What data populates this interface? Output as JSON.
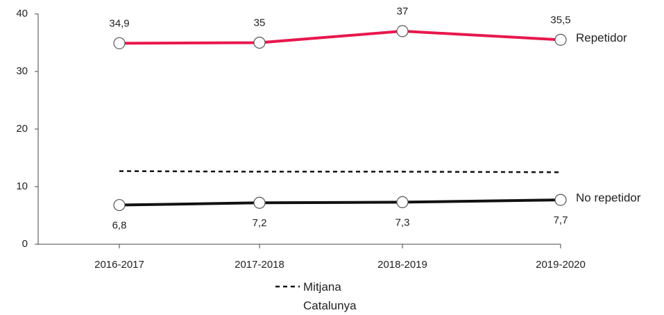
{
  "chart_data": {
    "type": "line",
    "categories": [
      "2016-2017",
      "2017-2018",
      "2018-2019",
      "2019-2020"
    ],
    "series": [
      {
        "name": "Repetidor",
        "color": "#e8174d",
        "values": [
          34.9,
          35,
          37,
          35.5
        ],
        "value_labels": [
          "34,9",
          "35",
          "37",
          "35,5"
        ]
      },
      {
        "name": "No repetidor",
        "color": "#111111",
        "values": [
          6.8,
          7.2,
          7.3,
          7.7
        ],
        "value_labels": [
          "6,8",
          "7,2",
          "7,3",
          "7,7"
        ]
      },
      {
        "name": "Mitjana Catalunya",
        "color": "#111111",
        "dashed": true,
        "values": [
          12.7,
          12.6,
          12.6,
          12.5
        ]
      }
    ],
    "ylim": [
      0,
      40
    ],
    "yticks": [
      0,
      10,
      20,
      30,
      40
    ]
  }
}
